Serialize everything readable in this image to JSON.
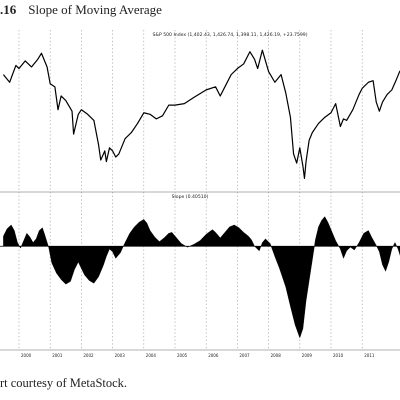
{
  "figure": {
    "number": ".16",
    "title": "Slope of Moving Average",
    "credit": "rt courtesy of MetaStock."
  },
  "chart_data": [
    {
      "type": "line",
      "title": "S&P 500 Index (1,402.43, 1,426.74, 1,398.11, 1,426.19, +23.7599)",
      "series": [
        {
          "name": "S&P 500 Index",
          "x": [
            1999.5,
            1999.7,
            1999.9,
            2000.0,
            2000.2,
            2000.4,
            2000.6,
            2000.72,
            2000.9,
            2001.0,
            2001.15,
            2001.25,
            2001.35,
            2001.5,
            2001.7,
            2001.75,
            2001.9,
            2002.0,
            2002.2,
            2002.4,
            2002.55,
            2002.62,
            2002.75,
            2002.8,
            2002.9,
            2003.0,
            2003.1,
            2003.2,
            2003.4,
            2003.6,
            2003.8,
            2004.0,
            2004.2,
            2004.4,
            2004.6,
            2004.8,
            2005.0,
            2005.3,
            2005.6,
            2006.0,
            2006.3,
            2006.45,
            2006.6,
            2006.8,
            2007.0,
            2007.2,
            2007.4,
            2007.55,
            2007.65,
            2007.8,
            2008.0,
            2008.2,
            2008.4,
            2008.55,
            2008.7,
            2008.8,
            2008.9,
            2009.0,
            2009.1,
            2009.15,
            2009.2,
            2009.3,
            2009.4,
            2009.6,
            2009.8,
            2010.0,
            2010.15,
            2010.3,
            2010.4,
            2010.5,
            2010.7,
            2010.9,
            2011.0,
            2011.2,
            2011.35,
            2011.45,
            2011.55,
            2011.65,
            2011.8,
            2011.95,
            2012.1,
            2012.2,
            2012.3
          ],
          "values": [
            1380,
            1330,
            1440,
            1420,
            1470,
            1430,
            1480,
            1520,
            1430,
            1320,
            1300,
            1150,
            1240,
            1210,
            1140,
            990,
            1120,
            1150,
            1120,
            1080,
            920,
            820,
            880,
            810,
            900,
            880,
            840,
            860,
            960,
            1000,
            1060,
            1130,
            1120,
            1090,
            1110,
            1180,
            1180,
            1190,
            1230,
            1280,
            1300,
            1240,
            1300,
            1380,
            1420,
            1450,
            1530,
            1480,
            1420,
            1540,
            1400,
            1330,
            1380,
            1260,
            1100,
            860,
            800,
            900,
            780,
            700,
            810,
            950,
            1000,
            1060,
            1100,
            1130,
            1190,
            1040,
            1090,
            1080,
            1150,
            1250,
            1290,
            1330,
            1340,
            1200,
            1140,
            1200,
            1250,
            1280,
            1350,
            1400,
            1420
          ]
        }
      ],
      "legend": "none"
    },
    {
      "type": "area",
      "title": "Slope (0.40510)",
      "series": [
        {
          "name": "Slope",
          "x": [
            1999.5,
            1999.62,
            1999.75,
            1999.85,
            1999.95,
            2000.05,
            2000.15,
            2000.25,
            2000.35,
            2000.45,
            2000.55,
            2000.65,
            2000.75,
            2000.82,
            2000.95,
            2001.05,
            2001.2,
            2001.35,
            2001.5,
            2001.65,
            2001.78,
            2001.9,
            2002.0,
            2002.1,
            2002.25,
            2002.4,
            2002.55,
            2002.7,
            2002.8,
            2002.9,
            2003.0,
            2003.1,
            2003.25,
            2003.4,
            2003.55,
            2003.7,
            2003.85,
            2004.0,
            2004.1,
            2004.2,
            2004.35,
            2004.5,
            2004.65,
            2004.8,
            2004.9,
            2005.05,
            2005.2,
            2005.4,
            2005.6,
            2005.8,
            2006.0,
            2006.2,
            2006.3,
            2006.45,
            2006.6,
            2006.75,
            2006.9,
            2007.05,
            2007.2,
            2007.35,
            2007.45,
            2007.55,
            2007.7,
            2007.8,
            2007.9,
            2008.05,
            2008.2,
            2008.35,
            2008.55,
            2008.7,
            2008.85,
            2009.0,
            2009.1,
            2009.2,
            2009.35,
            2009.5,
            2009.6,
            2009.7,
            2009.8,
            2009.9,
            2010.0,
            2010.15,
            2010.3,
            2010.4,
            2010.5,
            2010.62,
            2010.75,
            2010.9,
            2011.05,
            2011.2,
            2011.3,
            2011.45,
            2011.55,
            2011.65,
            2011.75,
            2011.85,
            2011.95,
            2012.05,
            2012.15,
            2012.3
          ],
          "values": [
            22,
            38,
            46,
            34,
            8,
            -4,
            12,
            28,
            20,
            8,
            16,
            34,
            40,
            26,
            -2,
            -36,
            -58,
            -72,
            -82,
            -76,
            -50,
            -34,
            -48,
            -62,
            -74,
            -80,
            -66,
            -42,
            -22,
            -6,
            -12,
            -26,
            -14,
            8,
            28,
            42,
            52,
            58,
            50,
            34,
            20,
            10,
            18,
            28,
            30,
            18,
            6,
            -2,
            4,
            12,
            26,
            36,
            30,
            18,
            30,
            42,
            46,
            40,
            30,
            22,
            14,
            0,
            -10,
            8,
            16,
            6,
            -22,
            -48,
            -88,
            -130,
            -170,
            -198,
            -178,
            -118,
            -52,
            14,
            42,
            56,
            64,
            52,
            36,
            12,
            -6,
            -26,
            -10,
            -2,
            -8,
            8,
            28,
            34,
            20,
            2,
            -12,
            -40,
            -54,
            -34,
            -6,
            8,
            -6,
            -38
          ],
          "ylim": [
            -220,
            100
          ]
        }
      ],
      "legend": "none"
    }
  ],
  "axis": {
    "x_ticks": [
      "2000",
      "2001",
      "2002",
      "2003",
      "2004",
      "2005",
      "2006",
      "2007",
      "2008",
      "2009",
      "2010",
      "2011"
    ]
  }
}
